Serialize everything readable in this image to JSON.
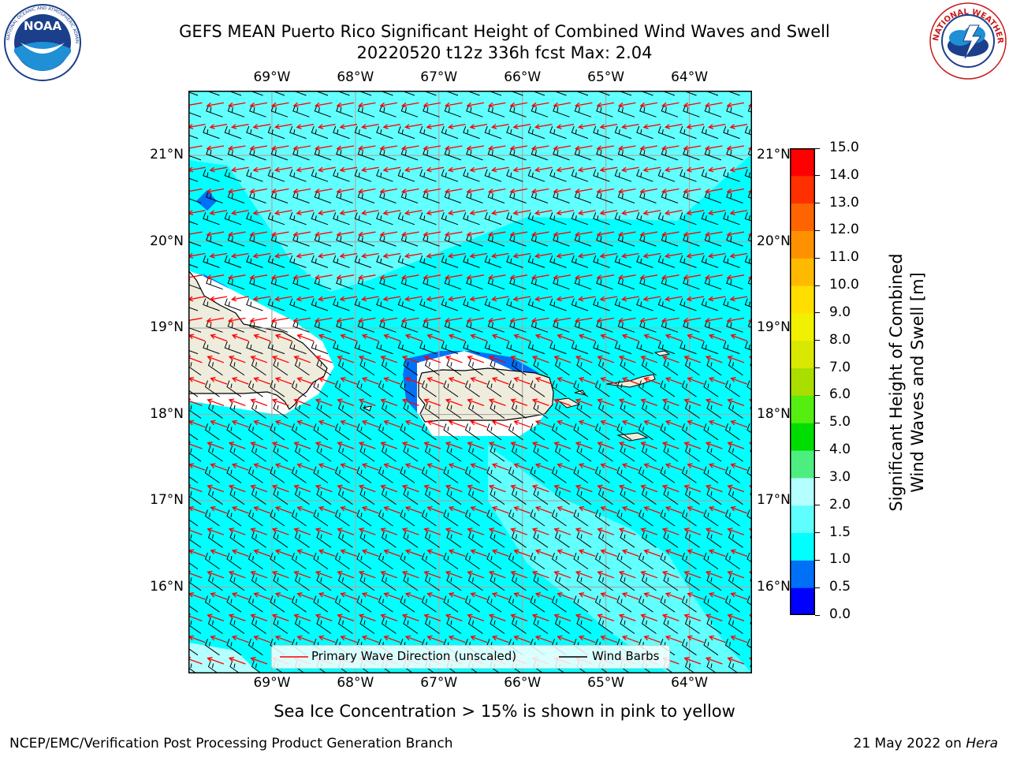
{
  "title": {
    "line1": "GEFS MEAN Puerto Rico Significant Height of Combined Wind Waves and Swell",
    "line2": "20220520 t12z 336h fcst   Max: 2.04"
  },
  "logos": {
    "left": {
      "text": "NOAA",
      "ring_text": "NATIONAL OCEANIC AND ATMOSPHERIC ADMINISTRATION · U.S. DEPARTMENT OF COMMERCE"
    },
    "right": {
      "ring_text": "NATIONAL WEATHER SERVICE"
    }
  },
  "map": {
    "lon_labels": [
      "69°W",
      "68°W",
      "67°W",
      "66°W",
      "65°W",
      "64°W"
    ],
    "lat_labels": [
      "21°N",
      "20°N",
      "19°N",
      "18°N",
      "17°N",
      "16°N"
    ],
    "lon_range": [
      -70.0,
      -63.25
    ],
    "lat_range": [
      15.0,
      21.75
    ],
    "wave_arrow_color": "#ff0000",
    "wind_barb_color": "#000000",
    "land_color": "#eeecdc"
  },
  "legend": {
    "wave_label": "Primary Wave Direction (unscaled)",
    "barb_label": "Wind Barbs"
  },
  "colorbar": {
    "title_line1": "Significant Height of Combined",
    "title_line2": "Wind Waves and Swell [m]",
    "ticks": [
      "0.0",
      "0.5",
      "1.0",
      "1.5",
      "2.0",
      "3.0",
      "4.0",
      "5.0",
      "6.0",
      "7.0",
      "8.0",
      "9.0",
      "10.0",
      "11.0",
      "12.0",
      "13.0",
      "14.0",
      "15.0"
    ],
    "colors": [
      "#0000ff",
      "#0070f7",
      "#00ffff",
      "#60ffff",
      "#b4ffff",
      "#4dee80",
      "#00dd00",
      "#55ee11",
      "#aadd00",
      "#d8e800",
      "#f0f000",
      "#ffde00",
      "#ffba00",
      "#ff9100",
      "#ff6400",
      "#ff3000",
      "#ff0000"
    ]
  },
  "note": "Sea Ice Concentration > 15% is shown in pink to yellow",
  "footer": {
    "left": "NCEP/EMC/Verification Post Processing Product Generation Branch",
    "date": "21 May 2022 on ",
    "machine": "Hera"
  }
}
